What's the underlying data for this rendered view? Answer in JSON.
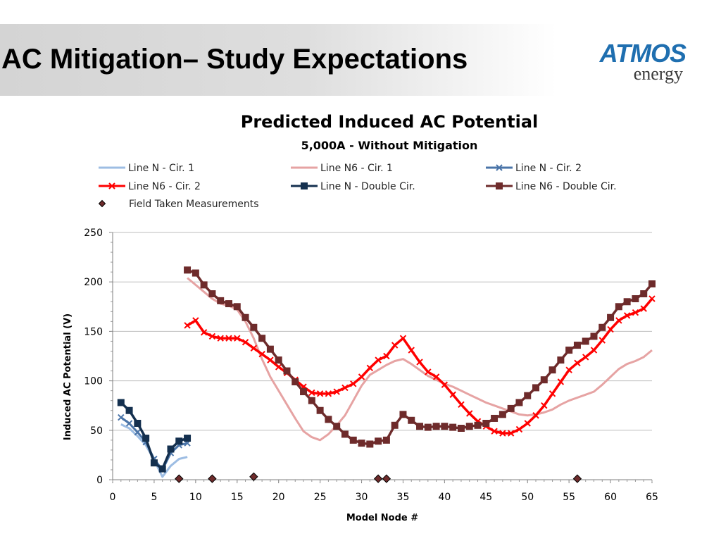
{
  "slide": {
    "title": "AC Mitigation– Study Expectations",
    "logo": {
      "main": "ATMOS",
      "sub": "energy"
    }
  },
  "chart_data": {
    "type": "line",
    "title": "Predicted Induced AC Potential",
    "subtitle": "5,000A  - Without Mitigation",
    "xlabel": "Model Node #",
    "ylabel": "Induced AC Potential (V)",
    "xlim": [
      0,
      65
    ],
    "ylim": [
      0,
      250
    ],
    "xticks": [
      0,
      5,
      10,
      15,
      20,
      25,
      30,
      35,
      40,
      45,
      50,
      55,
      60,
      65
    ],
    "yticks": [
      0,
      50,
      100,
      150,
      200,
      250
    ],
    "grid": "horizontal",
    "legend_position": "top",
    "series": [
      {
        "name": "Line N - Cir. 1",
        "color": "#9dbde3",
        "marker": "none",
        "width": 3,
        "points": [
          [
            1,
            56
          ],
          [
            2,
            52
          ],
          [
            3,
            44
          ],
          [
            4,
            35
          ],
          [
            5,
            20
          ],
          [
            6,
            3
          ],
          [
            7,
            14
          ],
          [
            8,
            21
          ],
          [
            9,
            23
          ]
        ]
      },
      {
        "name": "Line N6 - Cir. 1",
        "color": "#e6a3a3",
        "marker": "none",
        "width": 3,
        "points": [
          [
            9,
            204
          ],
          [
            10,
            197
          ],
          [
            11,
            190
          ],
          [
            12,
            183
          ],
          [
            13,
            178
          ],
          [
            14,
            176
          ],
          [
            15,
            172
          ],
          [
            16,
            160
          ],
          [
            17,
            143
          ],
          [
            18,
            122
          ],
          [
            19,
            104
          ],
          [
            20,
            90
          ],
          [
            21,
            76
          ],
          [
            22,
            62
          ],
          [
            23,
            49
          ],
          [
            24,
            43
          ],
          [
            25,
            40
          ],
          [
            26,
            46
          ],
          [
            27,
            55
          ],
          [
            28,
            65
          ],
          [
            29,
            80
          ],
          [
            30,
            95
          ],
          [
            31,
            106
          ],
          [
            32,
            111
          ],
          [
            33,
            116
          ],
          [
            34,
            120
          ],
          [
            35,
            122
          ],
          [
            36,
            117
          ],
          [
            37,
            111
          ],
          [
            38,
            105
          ],
          [
            39,
            101
          ],
          [
            40,
            97
          ],
          [
            41,
            94
          ],
          [
            42,
            90
          ],
          [
            43,
            86
          ],
          [
            44,
            82
          ],
          [
            45,
            78
          ],
          [
            46,
            75
          ],
          [
            47,
            72
          ],
          [
            48,
            69
          ],
          [
            49,
            66
          ],
          [
            50,
            65
          ],
          [
            51,
            66
          ],
          [
            52,
            68
          ],
          [
            53,
            71
          ],
          [
            54,
            76
          ],
          [
            55,
            80
          ],
          [
            56,
            83
          ],
          [
            57,
            86
          ],
          [
            58,
            89
          ],
          [
            59,
            96
          ],
          [
            60,
            104
          ],
          [
            61,
            112
          ],
          [
            62,
            117
          ],
          [
            63,
            120
          ],
          [
            64,
            124
          ],
          [
            65,
            131
          ]
        ]
      },
      {
        "name": "Line N - Cir. 2",
        "color": "#4a74a8",
        "marker": "x",
        "width": 3,
        "points": [
          [
            1,
            63
          ],
          [
            2,
            57
          ],
          [
            3,
            48
          ],
          [
            4,
            38
          ],
          [
            5,
            21
          ],
          [
            6,
            10
          ],
          [
            7,
            27
          ],
          [
            8,
            35
          ],
          [
            9,
            37
          ]
        ]
      },
      {
        "name": "Line N6 - Cir. 2",
        "color": "#ff0000",
        "marker": "x",
        "width": 3.5,
        "points": [
          [
            9,
            156
          ],
          [
            10,
            161
          ],
          [
            11,
            149
          ],
          [
            12,
            145
          ],
          [
            13,
            143
          ],
          [
            14,
            143
          ],
          [
            15,
            143
          ],
          [
            16,
            139
          ],
          [
            17,
            133
          ],
          [
            18,
            127
          ],
          [
            19,
            121
          ],
          [
            20,
            114
          ],
          [
            21,
            108
          ],
          [
            22,
            101
          ],
          [
            23,
            94
          ],
          [
            24,
            88
          ],
          [
            25,
            87
          ],
          [
            26,
            87
          ],
          [
            27,
            89
          ],
          [
            28,
            93
          ],
          [
            29,
            97
          ],
          [
            30,
            104
          ],
          [
            31,
            113
          ],
          [
            32,
            121
          ],
          [
            33,
            125
          ],
          [
            34,
            136
          ],
          [
            35,
            143
          ],
          [
            36,
            131
          ],
          [
            37,
            119
          ],
          [
            38,
            109
          ],
          [
            39,
            104
          ],
          [
            40,
            96
          ],
          [
            41,
            86
          ],
          [
            42,
            76
          ],
          [
            43,
            67
          ],
          [
            44,
            59
          ],
          [
            45,
            54
          ],
          [
            46,
            49
          ],
          [
            47,
            47
          ],
          [
            48,
            47
          ],
          [
            49,
            51
          ],
          [
            50,
            57
          ],
          [
            51,
            65
          ],
          [
            52,
            75
          ],
          [
            53,
            87
          ],
          [
            54,
            99
          ],
          [
            55,
            111
          ],
          [
            56,
            118
          ],
          [
            57,
            124
          ],
          [
            58,
            131
          ],
          [
            59,
            141
          ],
          [
            60,
            152
          ],
          [
            61,
            161
          ],
          [
            62,
            166
          ],
          [
            63,
            169
          ],
          [
            64,
            173
          ],
          [
            65,
            183
          ]
        ]
      },
      {
        "name": "Line N - Double Cir.",
        "color": "#14304f",
        "marker": "square",
        "width": 3.5,
        "points": [
          [
            1,
            78
          ],
          [
            2,
            70
          ],
          [
            3,
            57
          ],
          [
            4,
            42
          ],
          [
            5,
            17
          ],
          [
            6,
            11
          ],
          [
            7,
            31
          ],
          [
            8,
            39
          ],
          [
            9,
            42
          ]
        ]
      },
      {
        "name": "Line N6 - Double Cir.",
        "color": "#6e2b2b",
        "marker": "square",
        "width": 3.5,
        "points": [
          [
            9,
            212
          ],
          [
            10,
            209
          ],
          [
            11,
            197
          ],
          [
            12,
            188
          ],
          [
            13,
            181
          ],
          [
            14,
            178
          ],
          [
            15,
            175
          ],
          [
            16,
            164
          ],
          [
            17,
            154
          ],
          [
            18,
            143
          ],
          [
            19,
            132
          ],
          [
            20,
            121
          ],
          [
            21,
            110
          ],
          [
            22,
            99
          ],
          [
            23,
            89
          ],
          [
            24,
            80
          ],
          [
            25,
            70
          ],
          [
            26,
            61
          ],
          [
            27,
            54
          ],
          [
            28,
            46
          ],
          [
            29,
            40
          ],
          [
            30,
            37
          ],
          [
            31,
            36
          ],
          [
            32,
            39
          ],
          [
            33,
            40
          ],
          [
            34,
            55
          ],
          [
            35,
            66
          ],
          [
            36,
            60
          ],
          [
            37,
            54
          ],
          [
            38,
            53
          ],
          [
            39,
            54
          ],
          [
            40,
            54
          ],
          [
            41,
            53
          ],
          [
            42,
            52
          ],
          [
            43,
            54
          ],
          [
            44,
            55
          ],
          [
            45,
            57
          ],
          [
            46,
            62
          ],
          [
            47,
            66
          ],
          [
            48,
            72
          ],
          [
            49,
            78
          ],
          [
            50,
            85
          ],
          [
            51,
            93
          ],
          [
            52,
            101
          ],
          [
            53,
            111
          ],
          [
            54,
            121
          ],
          [
            55,
            131
          ],
          [
            56,
            136
          ],
          [
            57,
            140
          ],
          [
            58,
            145
          ],
          [
            59,
            154
          ],
          [
            60,
            164
          ],
          [
            61,
            175
          ],
          [
            62,
            180
          ],
          [
            63,
            183
          ],
          [
            64,
            188
          ],
          [
            65,
            198
          ]
        ]
      },
      {
        "name": "Field Taken Measurements",
        "color": "#6e2b2b",
        "marker": "diamond",
        "width": 0,
        "points": [
          [
            8,
            1
          ],
          [
            12,
            1
          ],
          [
            17,
            3
          ],
          [
            32,
            1
          ],
          [
            33,
            1
          ],
          [
            56,
            1
          ]
        ]
      }
    ]
  }
}
